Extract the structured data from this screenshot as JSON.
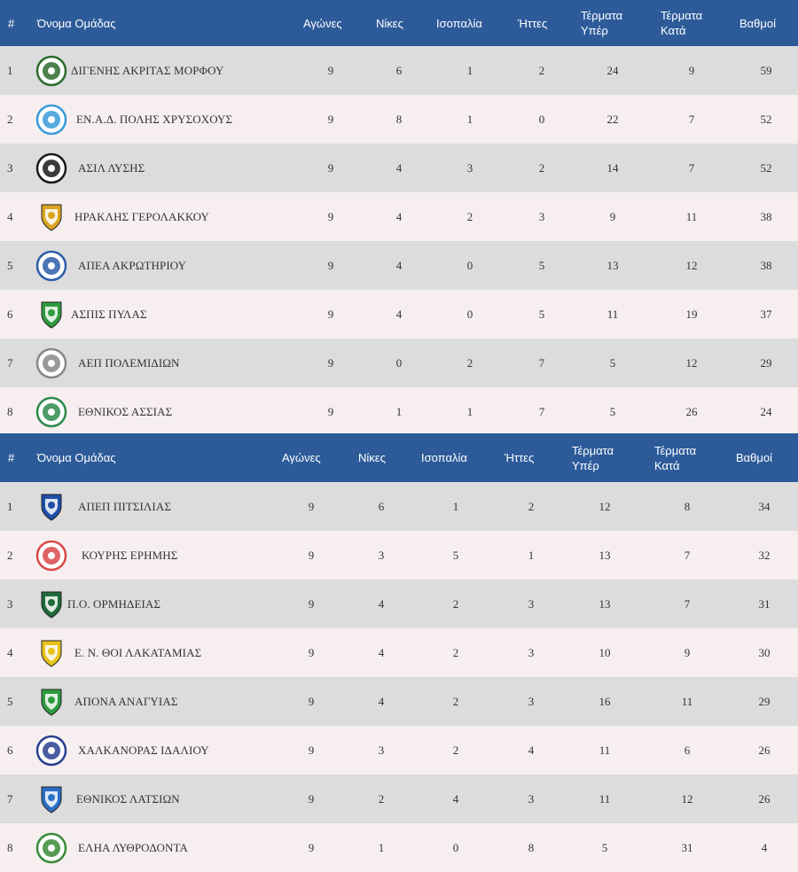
{
  "headers": {
    "rank": "#",
    "team": "Όνομα Ομάδας",
    "played": "Αγώνες",
    "wins": "Νίκες",
    "draws": "Ισοπαλία",
    "losses": "Ήττες",
    "goals_for_1": "Τέρματα",
    "goals_for_2": "Υπέρ",
    "goals_against_1": "Τέρματα",
    "goals_against_2": "Κατά",
    "points": "Βαθμοί"
  },
  "groups": [
    {
      "rows": [
        {
          "rank": "1",
          "team": "ΔΙΓΕΝΗΣ ΑΚΡΙΤΑΣ ΜΟΡΦΟΥ",
          "played": "9",
          "wins": "6",
          "draws": "1",
          "losses": "2",
          "gf": "24",
          "ga": "9",
          "pts": "59",
          "logo": "digenis-logo",
          "color": "#2e6b2e"
        },
        {
          "rank": "2",
          "team": "ΕΝ.Α.Δ. ΠΟΛΗΣ ΧΡΥΣΟΧΟΥΣ",
          "played": "9",
          "wins": "8",
          "draws": "1",
          "losses": "0",
          "gf": "22",
          "ga": "7",
          "pts": "52",
          "logo": "enad-logo",
          "color": "#3a9ad9"
        },
        {
          "rank": "3",
          "team": "ΑΣΙΛ ΛΥΣΗΣ",
          "played": "9",
          "wins": "4",
          "draws": "3",
          "losses": "2",
          "gf": "14",
          "ga": "7",
          "pts": "52",
          "logo": "asil-logo",
          "color": "#1a1a1a"
        },
        {
          "rank": "4",
          "team": "ΗΡΑΚΛΗΣ ΓΕΡΟΛΑΚΚΟΥ",
          "played": "9",
          "wins": "4",
          "draws": "2",
          "losses": "3",
          "gf": "9",
          "ga": "11",
          "pts": "38",
          "logo": "iraklis-logo",
          "color": "#d9a520"
        },
        {
          "rank": "5",
          "team": "ΑΠΕΑ ΑΚΡΩΤΗΡΙΟΥ",
          "played": "9",
          "wins": "4",
          "draws": "0",
          "losses": "5",
          "gf": "13",
          "ga": "12",
          "pts": "38",
          "logo": "apea-logo",
          "color": "#2c5ea8"
        },
        {
          "rank": "6",
          "team": "ΑΣΠΙΣ ΠΥΛΑΣ",
          "played": "9",
          "wins": "4",
          "draws": "0",
          "losses": "5",
          "gf": "11",
          "ga": "19",
          "pts": "37",
          "logo": "aspis-logo",
          "color": "#2e9a3e"
        },
        {
          "rank": "7",
          "team": "ΑΕΠ ΠΟΛΕΜΙΔΙΩΝ",
          "played": "9",
          "wins": "0",
          "draws": "2",
          "losses": "7",
          "gf": "5",
          "ga": "12",
          "pts": "29",
          "logo": "aep-logo",
          "color": "#888888"
        },
        {
          "rank": "8",
          "team": "ΕΘΝΙΚΟΣ ΑΣΣΙΑΣ",
          "played": "9",
          "wins": "1",
          "draws": "1",
          "losses": "7",
          "gf": "5",
          "ga": "26",
          "pts": "24",
          "logo": "ethnikos-assias-logo",
          "color": "#2e8a4e"
        }
      ]
    },
    {
      "rows": [
        {
          "rank": "1",
          "team": "ΑΠΕΠ ΠΙΤΣΙΛΙΑΣ",
          "played": "9",
          "wins": "6",
          "draws": "1",
          "losses": "2",
          "gf": "12",
          "ga": "8",
          "pts": "34",
          "logo": "apep-logo",
          "color": "#1f4fa8"
        },
        {
          "rank": "2",
          "team": "ΚΟΥΡΗΣ ΕΡΗΜΗΣ",
          "played": "9",
          "wins": "3",
          "draws": "5",
          "losses": "1",
          "gf": "13",
          "ga": "7",
          "pts": "32",
          "logo": "kouris-logo",
          "color": "#d94a4a"
        },
        {
          "rank": "3",
          "team": "Π.Ο. ΟΡΜΗΔΕΙΑΣ",
          "played": "9",
          "wins": "4",
          "draws": "2",
          "losses": "3",
          "gf": "13",
          "ga": "7",
          "pts": "31",
          "logo": "ormideia-logo",
          "color": "#1e6b3a"
        },
        {
          "rank": "4",
          "team": "Ε. Ν. ΘΟΙ ΛΑΚΑΤΑΜΙΑΣ",
          "played": "9",
          "wins": "4",
          "draws": "2",
          "losses": "3",
          "gf": "10",
          "ga": "9",
          "pts": "30",
          "logo": "thoi-logo",
          "color": "#e6c21a"
        },
        {
          "rank": "5",
          "team": "ΑΠΟΝΑ ΑΝΑΓΥΙΑΣ",
          "played": "9",
          "wins": "4",
          "draws": "2",
          "losses": "3",
          "gf": "16",
          "ga": "11",
          "pts": "29",
          "logo": "apona-logo",
          "color": "#2e9a3e"
        },
        {
          "rank": "6",
          "team": "ΧΑΛΚΑΝΟΡΑΣ ΙΔΑΛΙΟΥ",
          "played": "9",
          "wins": "3",
          "draws": "2",
          "losses": "4",
          "gf": "11",
          "ga": "6",
          "pts": "26",
          "logo": "chalkanoras-logo",
          "color": "#2a3f8f"
        },
        {
          "rank": "7",
          "team": "ΕΘΝΙΚΟΣ ΛΑΤΣΙΩΝ",
          "played": "9",
          "wins": "2",
          "draws": "4",
          "losses": "3",
          "gf": "11",
          "ga": "12",
          "pts": "26",
          "logo": "ethnikos-latsion-logo",
          "color": "#2a6fc4"
        },
        {
          "rank": "8",
          "team": "ΕΛΗΑ ΛΥΘΡΟΔΟΝΤΑ",
          "played": "9",
          "wins": "1",
          "draws": "0",
          "losses": "8",
          "gf": "5",
          "ga": "31",
          "pts": "4",
          "logo": "elia-logo",
          "color": "#3a8a3a"
        }
      ]
    }
  ]
}
